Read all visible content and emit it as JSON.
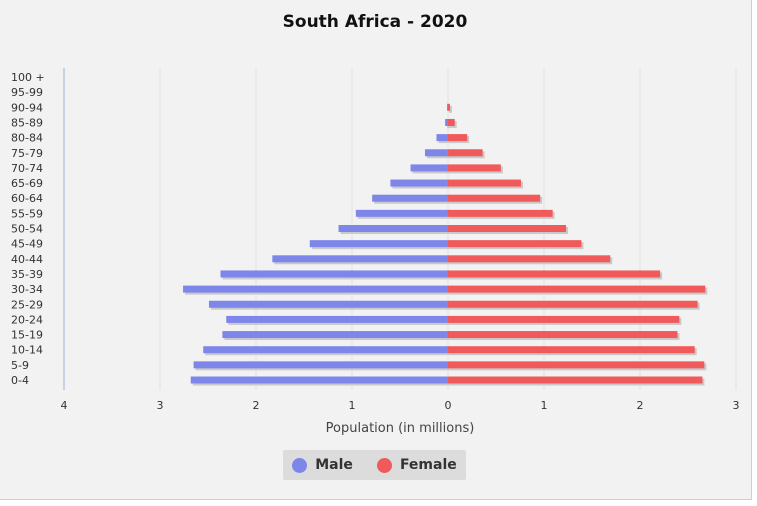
{
  "chart_data": {
    "type": "bar",
    "orientation": "horizontal-population-pyramid",
    "title": "South Africa - 2020",
    "xlabel": "Population (in millions)",
    "categories": [
      "0-4",
      "5-9",
      "10-14",
      "15-19",
      "20-24",
      "25-29",
      "30-34",
      "35-39",
      "40-44",
      "45-49",
      "50-54",
      "55-59",
      "60-64",
      "65-69",
      "70-74",
      "75-79",
      "80-84",
      "85-89",
      "90-94",
      "95-99",
      "100 +"
    ],
    "series": [
      {
        "name": "Male",
        "color": "#7f86ea",
        "values": [
          2.68,
          2.65,
          2.55,
          2.35,
          2.31,
          2.49,
          2.76,
          2.37,
          1.83,
          1.44,
          1.14,
          0.96,
          0.79,
          0.6,
          0.39,
          0.24,
          0.12,
          0.03,
          0.01,
          0.0,
          0.0
        ]
      },
      {
        "name": "Female",
        "color": "#f05a5a",
        "values": [
          2.65,
          2.67,
          2.57,
          2.39,
          2.41,
          2.6,
          2.68,
          2.21,
          1.69,
          1.39,
          1.23,
          1.09,
          0.96,
          0.76,
          0.55,
          0.36,
          0.2,
          0.07,
          0.02,
          0.0,
          0.0
        ]
      }
    ],
    "x_tick_labels": [
      "4",
      "3",
      "2",
      "1",
      "0",
      "1",
      "2",
      "3"
    ],
    "xlim": [
      -4,
      3
    ],
    "grid": true,
    "legend_position": "bottom"
  },
  "legend": {
    "male_label": "Male",
    "female_label": "Female"
  }
}
